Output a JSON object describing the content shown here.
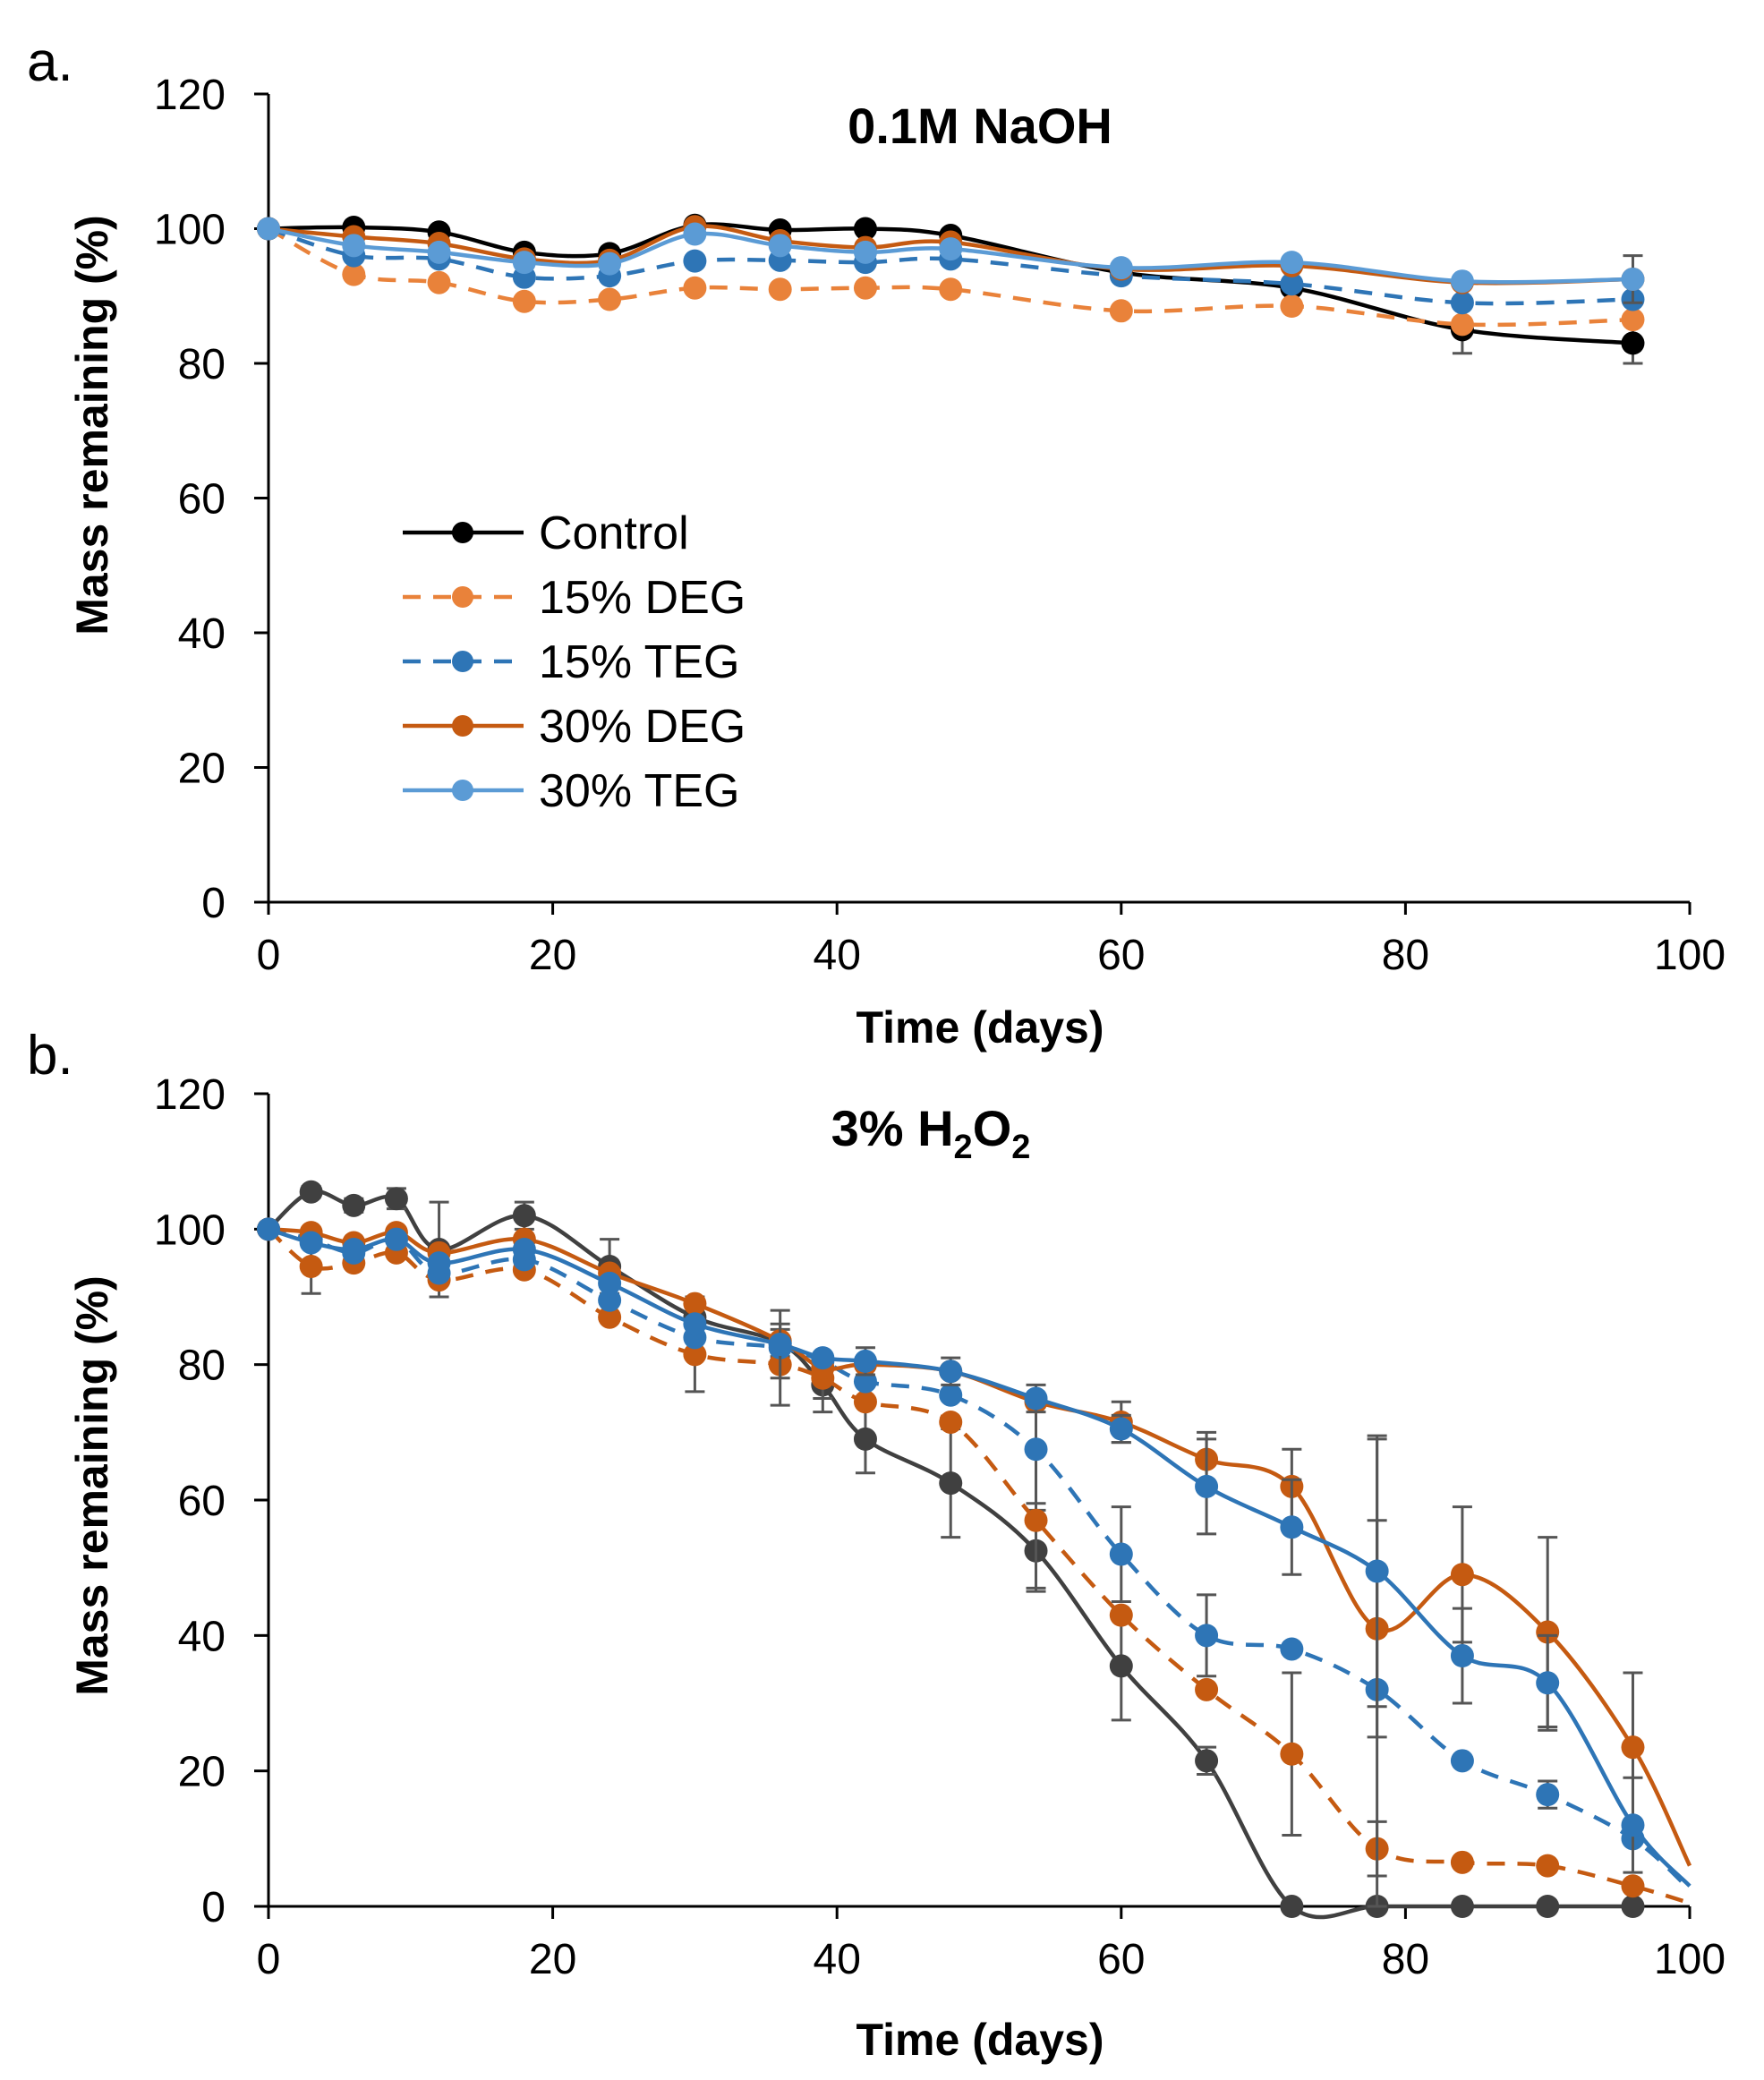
{
  "chart_data": [
    {
      "panel": "a.",
      "type": "line",
      "title": "0.1M NaOH",
      "xlabel": "Time (days)",
      "ylabel": "Mass remaining (%)",
      "xlim": [
        0,
        100
      ],
      "ylim": [
        0,
        120
      ],
      "xticks": [
        0,
        20,
        40,
        60,
        80,
        100
      ],
      "yticks": [
        0,
        20,
        40,
        60,
        80,
        100,
        120
      ],
      "grid": false,
      "legend_position": "center-left",
      "series": [
        {
          "name": "Control",
          "color": "#000000",
          "dashed": false,
          "x": [
            0,
            6,
            12,
            18,
            24,
            30,
            36,
            42,
            48,
            60,
            72,
            84,
            96
          ],
          "y": [
            100,
            100.2,
            99.5,
            96.5,
            96.3,
            100.5,
            99.8,
            100,
            99,
            93.5,
            91.2,
            85,
            83
          ],
          "err": [
            0,
            0,
            0,
            0,
            0,
            0,
            0,
            0,
            0,
            0,
            0,
            3.5,
            3
          ]
        },
        {
          "name": "15% DEG",
          "color": "#e9823a",
          "dashed": true,
          "x": [
            0,
            6,
            12,
            18,
            24,
            30,
            36,
            42,
            48,
            60,
            72,
            84,
            96
          ],
          "y": [
            100,
            93.2,
            92,
            89.2,
            89.5,
            91.2,
            91,
            91.2,
            91,
            87.8,
            88.5,
            85.8,
            86.5
          ],
          "err": [
            0,
            0,
            0,
            0,
            0,
            0,
            0,
            0,
            0,
            0,
            0,
            0,
            0
          ]
        },
        {
          "name": "15% TEG",
          "color": "#2e75b6",
          "dashed": true,
          "x": [
            0,
            6,
            12,
            18,
            24,
            30,
            36,
            42,
            48,
            60,
            72,
            84,
            96
          ],
          "y": [
            100,
            96,
            95.5,
            92.8,
            93,
            95.2,
            95.3,
            95,
            95.5,
            93,
            91.8,
            89,
            89.5
          ],
          "err": [
            0,
            0,
            0,
            0,
            0,
            0,
            0,
            0,
            0,
            0,
            0,
            0,
            0
          ]
        },
        {
          "name": "30% DEG",
          "color": "#c55a11",
          "dashed": false,
          "x": [
            0,
            6,
            12,
            18,
            24,
            30,
            36,
            42,
            48,
            60,
            72,
            84,
            96
          ],
          "y": [
            100,
            98.8,
            97.8,
            95.5,
            95.3,
            100.3,
            98.2,
            97.2,
            98,
            94,
            94.5,
            92,
            92.5
          ],
          "err": [
            0,
            0,
            0,
            0,
            0,
            0,
            0,
            0,
            0,
            0,
            0,
            0,
            3.5
          ]
        },
        {
          "name": "30% TEG",
          "color": "#5b9bd5",
          "dashed": false,
          "x": [
            0,
            6,
            12,
            18,
            24,
            30,
            36,
            42,
            48,
            60,
            72,
            84,
            96
          ],
          "y": [
            100,
            97.5,
            96.5,
            95,
            94.8,
            99.2,
            97.5,
            96.5,
            97,
            94.2,
            95,
            92.2,
            92.5
          ],
          "err": [
            0,
            0,
            0,
            0,
            0,
            0,
            0,
            0,
            0,
            0,
            0,
            0,
            0
          ]
        }
      ]
    },
    {
      "panel": "b.",
      "type": "line",
      "title": "3% H",
      "title_sub1": "2",
      "title_mid": "O",
      "title_sub2": "2",
      "xlabel": "Time (days)",
      "ylabel": "Mass remaining (%)",
      "xlim": [
        0,
        100
      ],
      "ylim": [
        0,
        120
      ],
      "xticks": [
        0,
        20,
        40,
        60,
        80,
        100
      ],
      "yticks": [
        0,
        20,
        40,
        60,
        80,
        100,
        120
      ],
      "grid": false,
      "series": [
        {
          "name": "Control",
          "color": "#404040",
          "dashed": false,
          "x": [
            0,
            3,
            6,
            9,
            12,
            18,
            24,
            30,
            36,
            39,
            42,
            48,
            54,
            60,
            66,
            72,
            78,
            84,
            90,
            96
          ],
          "y": [
            100,
            105.5,
            103.5,
            104.5,
            97,
            102,
            94.5,
            87,
            83.2,
            77,
            69,
            62.5,
            52.5,
            35.5,
            21.5,
            0,
            0,
            0,
            0,
            0
          ],
          "err": [
            0,
            0.8,
            1,
            1.5,
            7,
            2,
            4,
            3,
            2,
            4,
            5,
            8,
            6,
            8,
            2,
            0,
            0,
            0,
            0,
            0
          ],
          "tail": false
        },
        {
          "name": "15% DEG",
          "color": "#c55a11",
          "dashed": true,
          "x": [
            0,
            3,
            6,
            9,
            12,
            18,
            24,
            30,
            36,
            39,
            42,
            48,
            54,
            60,
            66,
            72,
            78,
            84,
            90,
            96,
            100
          ],
          "y": [
            100,
            94.5,
            95,
            96.5,
            92.5,
            94,
            87,
            81.5,
            80,
            78,
            74.5,
            71.5,
            57,
            43,
            32,
            22.5,
            8.5,
            6.5,
            6,
            3,
            0.5
          ],
          "err": [
            0,
            4,
            0,
            0,
            0,
            0,
            0,
            5.5,
            6,
            3,
            0,
            0,
            10,
            0,
            0,
            12,
            4,
            0,
            0,
            0,
            0
          ],
          "tail": true
        },
        {
          "name": "15% TEG",
          "color": "#2e75b6",
          "dashed": true,
          "x": [
            0,
            3,
            6,
            9,
            12,
            18,
            24,
            30,
            36,
            39,
            42,
            48,
            54,
            60,
            66,
            72,
            78,
            84,
            90,
            96,
            100
          ],
          "y": [
            100,
            98.5,
            96.5,
            98.5,
            93.5,
            95.5,
            89.5,
            84,
            82.5,
            80.5,
            77.5,
            75.5,
            67.5,
            52,
            40,
            38,
            32,
            21.5,
            16.5,
            10,
            2.5
          ],
          "err": [
            0,
            0,
            0,
            0,
            0,
            0,
            0,
            0,
            0,
            0,
            0,
            0,
            8,
            7,
            6,
            0,
            37,
            0,
            2,
            0,
            0
          ],
          "tail": true
        },
        {
          "name": "30% DEG",
          "color": "#c55a11",
          "dashed": false,
          "x": [
            0,
            3,
            6,
            9,
            12,
            18,
            24,
            30,
            36,
            39,
            42,
            48,
            54,
            60,
            66,
            72,
            78,
            84,
            90,
            96,
            100
          ],
          "y": [
            100,
            99.5,
            98,
            99.5,
            96.5,
            98.5,
            93.5,
            89,
            83.5,
            79.5,
            80,
            79,
            74.5,
            71.5,
            66,
            62,
            41,
            49,
            40.5,
            23.5,
            6
          ],
          "err": [
            0,
            0,
            0,
            0,
            0,
            0,
            0,
            0,
            0,
            0,
            0,
            0,
            0,
            3,
            4,
            5.5,
            16,
            10,
            14,
            11,
            0
          ],
          "tail": true
        },
        {
          "name": "30% TEG",
          "color": "#2e75b6",
          "dashed": false,
          "x": [
            0,
            3,
            6,
            9,
            12,
            18,
            24,
            30,
            36,
            39,
            42,
            48,
            54,
            60,
            66,
            72,
            78,
            84,
            90,
            96,
            100
          ],
          "y": [
            100,
            98,
            97,
            98.5,
            95,
            97,
            92,
            86,
            83,
            81,
            80.5,
            79,
            75,
            70.5,
            62,
            56,
            49.5,
            37,
            33,
            12,
            3
          ],
          "err": [
            0,
            0,
            0,
            0,
            0,
            0,
            0,
            0,
            5,
            0,
            2,
            2,
            2,
            2,
            7,
            7,
            20,
            7,
            7,
            7,
            0
          ],
          "tail": true
        }
      ]
    }
  ]
}
